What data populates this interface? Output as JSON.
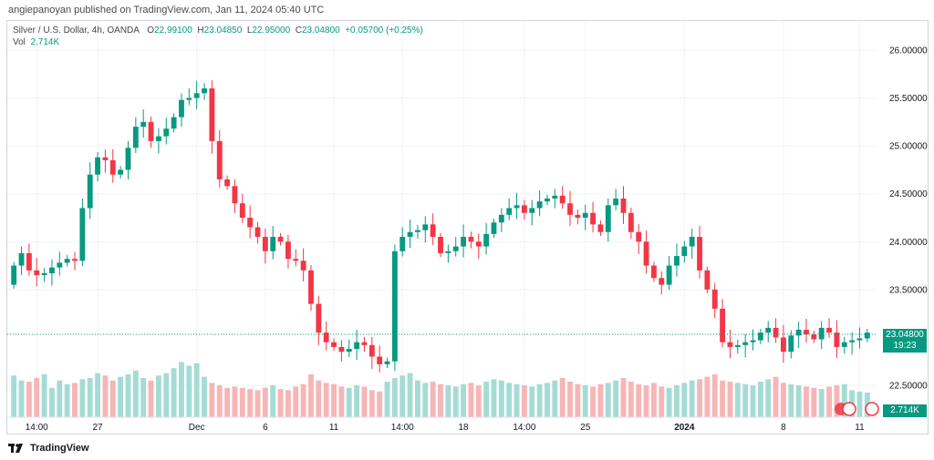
{
  "header": {
    "published": "angiepanoyan published on TradingView.com, Jan 11, 2024 05:40 UTC"
  },
  "legend": {
    "symbol": "Silver / U.S. Dollar, 4h, OANDA",
    "o_label": "O",
    "o_value": "22.99100",
    "h_label": "H",
    "h_value": "23.04850",
    "l_label": "L",
    "l_value": "22.95000",
    "c_label": "C",
    "c_value": "23.04800",
    "change": "+0.05700 (+0.25%)",
    "vol_label": "Vol",
    "vol_value": "2.714K"
  },
  "price_tag": {
    "price": "23.04800",
    "countdown": "19:23"
  },
  "volume_tag": "2.714K",
  "footer": {
    "brand": "TradingView"
  },
  "colors": {
    "up": "#089981",
    "down": "#f23645",
    "vol_up": "#a5dbd5",
    "vol_down": "#f7b5b5",
    "grid": "#f0f3fa"
  },
  "chart_data": {
    "type": "candlestick",
    "y_axis_ticks": [
      "26.00000",
      "25.50000",
      "25.00000",
      "24.50000",
      "24.00000",
      "23.50000",
      "22.50000"
    ],
    "ylim": [
      22.3,
      26.3
    ],
    "x_axis_ticks": [
      {
        "label": "14:00",
        "index": 3
      },
      {
        "label": "27",
        "index": 11
      },
      {
        "label": "Dec",
        "index": 24
      },
      {
        "label": "6",
        "index": 33
      },
      {
        "label": "11",
        "index": 42
      },
      {
        "label": "14:00",
        "index": 51
      },
      {
        "label": "18",
        "index": 59
      },
      {
        "label": "14:00",
        "index": 67
      },
      {
        "label": "25",
        "index": 75
      },
      {
        "label": "2024",
        "index": 88
      },
      {
        "label": "8",
        "index": 101
      },
      {
        "label": "11",
        "index": 111
      }
    ],
    "last_price": 23.048,
    "close": [
      23.75,
      23.88,
      23.7,
      23.65,
      23.67,
      23.73,
      23.78,
      23.82,
      23.8,
      24.35,
      24.7,
      24.88,
      24.85,
      24.7,
      24.75,
      24.98,
      25.2,
      25.25,
      25.05,
      25.1,
      25.18,
      25.3,
      25.48,
      25.5,
      25.55,
      25.6,
      25.05,
      24.65,
      24.58,
      24.4,
      24.25,
      24.15,
      24.05,
      23.9,
      24.05,
      24.0,
      23.82,
      23.8,
      23.7,
      23.35,
      23.05,
      22.95,
      22.9,
      22.85,
      22.88,
      22.95,
      22.92,
      22.8,
      22.72,
      22.75,
      23.9,
      24.05,
      24.1,
      24.12,
      24.18,
      24.05,
      23.88,
      23.9,
      23.95,
      24.05,
      24.0,
      23.95,
      24.08,
      24.2,
      24.28,
      24.35,
      24.38,
      24.3,
      24.35,
      24.42,
      24.45,
      24.48,
      24.4,
      24.28,
      24.25,
      24.3,
      24.18,
      24.1,
      24.38,
      24.45,
      24.3,
      24.1,
      24.0,
      23.75,
      23.62,
      23.55,
      23.75,
      23.85,
      23.95,
      24.05,
      23.7,
      23.5,
      23.3,
      22.95,
      22.9,
      22.92,
      22.95,
      22.97,
      23.05,
      23.1,
      23.0,
      22.85,
      23.02,
      23.08,
      23.03,
      22.98,
      23.1,
      23.05,
      22.9,
      22.95,
      22.97,
      22.99,
      23.05
    ],
    "volume": [
      34,
      30,
      29,
      32,
      35,
      24,
      30,
      27,
      28,
      31,
      32,
      36,
      34,
      30,
      33,
      35,
      38,
      32,
      30,
      34,
      36,
      40,
      45,
      42,
      44,
      33,
      28,
      26,
      24,
      25,
      24,
      23,
      22,
      24,
      26,
      23,
      22,
      25,
      27,
      35,
      30,
      28,
      27,
      25,
      24,
      26,
      25,
      22,
      21,
      29,
      32,
      34,
      36,
      30,
      28,
      29,
      27,
      26,
      25,
      27,
      28,
      26,
      29,
      31,
      30,
      28,
      27,
      26,
      25,
      27,
      28,
      30,
      32,
      29,
      27,
      26,
      25,
      27,
      28,
      30,
      32,
      29,
      27,
      26,
      28,
      25,
      24,
      26,
      28,
      30,
      31,
      33,
      35,
      30,
      29,
      28,
      27,
      26,
      29,
      31,
      33,
      28,
      27,
      26,
      25,
      24,
      23,
      25,
      26,
      27,
      22,
      21,
      20
    ]
  }
}
